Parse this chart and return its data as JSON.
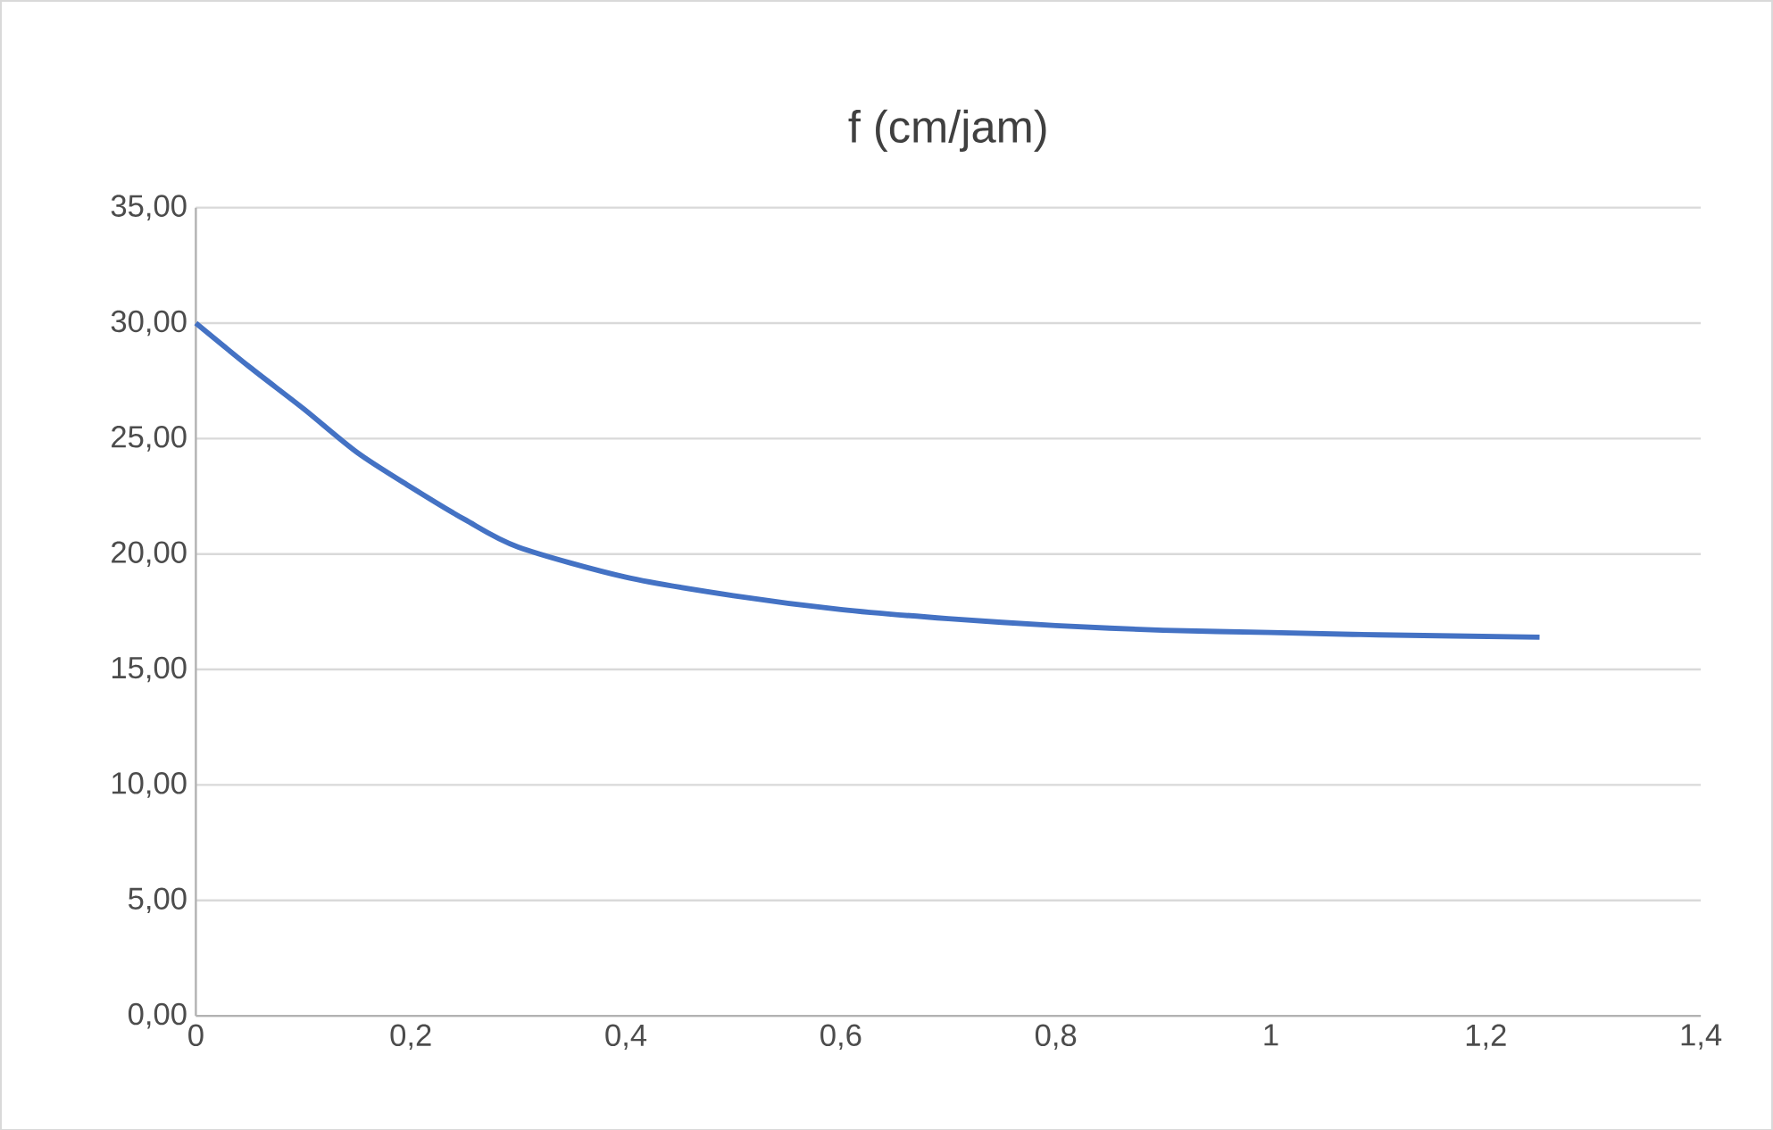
{
  "chart_data": {
    "type": "line",
    "title": "f (cm/jam)",
    "x": [
      0,
      0.05,
      0.1,
      0.15,
      0.2,
      0.25,
      0.3,
      0.4,
      0.5,
      0.6,
      0.7,
      0.8,
      0.9,
      1.0,
      1.1,
      1.25
    ],
    "series": [
      {
        "color": "#4472c4",
        "values": [
          30.0,
          28.1,
          26.3,
          24.4,
          22.9,
          21.5,
          20.3,
          19.0,
          18.2,
          17.6,
          17.2,
          16.9,
          16.7,
          16.6,
          16.5,
          16.4
        ]
      }
    ],
    "xlim": [
      0,
      1.4
    ],
    "xticks": [
      0,
      {
        "value": 0.2,
        "label": "0,2"
      },
      {
        "value": 0.4,
        "label": "0,4"
      },
      {
        "value": 0.6,
        "label": "0,6"
      },
      {
        "value": 0.8,
        "label": "0,8"
      },
      1,
      {
        "value": 1.2,
        "label": "1,2"
      },
      {
        "value": 1.4,
        "label": "1,4"
      }
    ],
    "ylim": [
      0,
      35
    ],
    "yticks": [
      {
        "value": 0,
        "label": "0,00"
      },
      {
        "value": 5,
        "label": "5,00"
      },
      {
        "value": 10,
        "label": "10,00"
      },
      {
        "value": 15,
        "label": "15,00"
      },
      {
        "value": 20,
        "label": "20,00"
      },
      {
        "value": 25,
        "label": "25,00"
      },
      {
        "value": 30,
        "label": "30,00"
      },
      {
        "value": 35,
        "label": "35,00"
      }
    ],
    "grid": "y",
    "marker": "none",
    "line_style": "solid"
  }
}
